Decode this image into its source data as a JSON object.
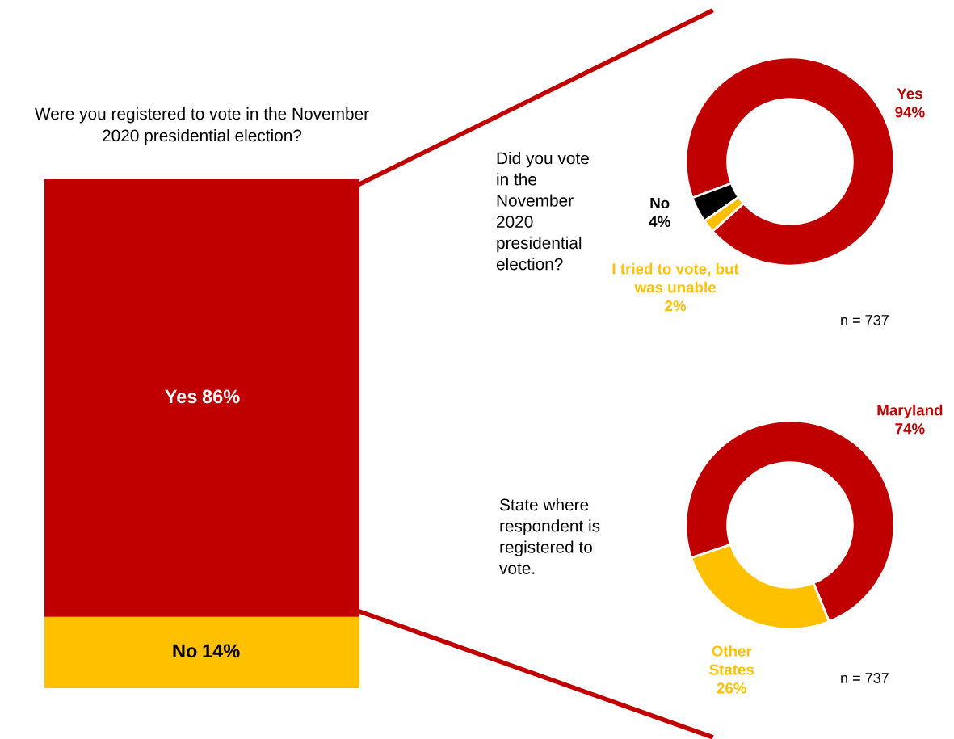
{
  "chart_data": [
    {
      "type": "bar",
      "stacked": true,
      "title": "Were you registered to vote in the November\n2020 presidential election?",
      "categories": [
        null
      ],
      "legend": false,
      "series": [
        {
          "name": "No",
          "color": "#ffc000",
          "values": [
            14
          ],
          "value_labels": [
            "14%"
          ]
        },
        {
          "name": "Yes",
          "color": "#c00000",
          "values": [
            86
          ],
          "value_labels": [
            "86%"
          ]
        }
      ]
    },
    {
      "type": "donut",
      "title": "Did you vote\nin the\nNovember\n2020\npresidential\nelection?",
      "categories": [
        "Yes",
        "No",
        "I tried to vote, but\nwas unable"
      ],
      "values": [
        94,
        4,
        2
      ],
      "colors": [
        "#c00000",
        "#000000",
        "#ffc000"
      ],
      "value_labels": [
        "94%",
        "4%",
        "2%"
      ],
      "annotations": [
        "n = 737"
      ]
    },
    {
      "type": "donut",
      "title": "State where\nrespondent is\nregistered to\nvote.",
      "categories": [
        "Maryland",
        "Other\nStates"
      ],
      "values": [
        74,
        26
      ],
      "colors": [
        "#c00000",
        "#ffc000"
      ],
      "value_labels": [
        "74%",
        "26%"
      ],
      "annotations": [
        "n = 737"
      ]
    }
  ]
}
